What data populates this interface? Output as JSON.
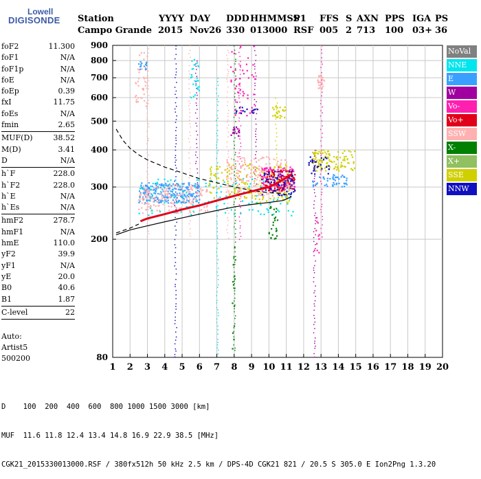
{
  "logo": {
    "line1": "Lowell",
    "line2": "DIGISONDE"
  },
  "header": {
    "labels": [
      "Station",
      "YYYY",
      "DAY",
      "DDD",
      "HHMMSS",
      "P1",
      "FFS",
      "S",
      "AXN",
      "PPS",
      "IGA",
      "PS"
    ],
    "values": [
      "Campo Grande",
      "2015",
      "Nov26",
      "330",
      "013000",
      "RSF",
      "005",
      "2",
      "713",
      "100",
      "03+",
      "36"
    ]
  },
  "params": {
    "group1": [
      {
        "k": "foF2",
        "v": "11.300"
      },
      {
        "k": "foF1",
        "v": "N/A"
      },
      {
        "k": "foF1p",
        "v": "N/A"
      },
      {
        "k": "foE",
        "v": "N/A"
      },
      {
        "k": "foEp",
        "v": "0.39"
      },
      {
        "k": "fxI",
        "v": "11.75"
      },
      {
        "k": "foEs",
        "v": "N/A"
      },
      {
        "k": "fmin",
        "v": "2.65"
      }
    ],
    "group2": [
      {
        "k": "MUF(D)",
        "v": "38.52"
      },
      {
        "k": "M(D)",
        "v": "3.41"
      },
      {
        "k": "D",
        "v": "N/A"
      }
    ],
    "group3": [
      {
        "k": "h`F",
        "v": "228.0"
      },
      {
        "k": "h`F2",
        "v": "228.0"
      },
      {
        "k": "h`E",
        "v": "N/A"
      },
      {
        "k": "h`Es",
        "v": "N/A"
      }
    ],
    "group4": [
      {
        "k": "hmF2",
        "v": "278.7"
      },
      {
        "k": "hmF1",
        "v": "N/A"
      },
      {
        "k": "hmE",
        "v": "110.0"
      },
      {
        "k": "yF2",
        "v": "39.9"
      },
      {
        "k": "yF1",
        "v": "N/A"
      },
      {
        "k": "yE",
        "v": "20.0"
      },
      {
        "k": "B0",
        "v": "40.6"
      },
      {
        "k": "B1",
        "v": "1.87"
      }
    ],
    "group5": [
      {
        "k": "C-level",
        "v": "22"
      }
    ]
  },
  "auto": {
    "line1": "Auto:",
    "line2": "Artist5",
    "line3": "500200"
  },
  "legend": [
    {
      "label": "NoVal",
      "color": "#808080"
    },
    {
      "label": "NNE",
      "color": "#00e5ee"
    },
    {
      "label": "E",
      "color": "#3aa0ff"
    },
    {
      "label": "W",
      "color": "#a000a0"
    },
    {
      "label": "Vo-",
      "color": "#ff20b0"
    },
    {
      "label": "Vo+",
      "color": "#e0001a"
    },
    {
      "label": "SSW",
      "color": "#ffb0b0"
    },
    {
      "label": "X-",
      "color": "#008000"
    },
    {
      "label": "X+",
      "color": "#90c060"
    },
    {
      "label": "SSE",
      "color": "#d0d000"
    },
    {
      "label": "NNW",
      "color": "#1010c0"
    }
  ],
  "footer": {
    "line1": "D    100  200  400  600  800 1000 1500 3000 [km]",
    "line2": "MUF  11.6 11.8 12.4 13.4 14.8 16.9 22.9 38.5 [MHz]",
    "line3": "CGK21_2015330013000.RSF / 380fx512h 50 kHz 2.5 km / DPS-4D CGK21 821 / 20.5 S 305.0 E Ion2Png 1.3.20"
  },
  "chart_data": {
    "type": "scatter",
    "xlim": [
      1,
      20
    ],
    "ylim": [
      80,
      900
    ],
    "y_scale": "log",
    "x_ticks": [
      "1",
      "2",
      "3",
      "4",
      "5",
      "6",
      "7",
      "8",
      "9",
      "10",
      "11",
      "12",
      "13",
      "14",
      "15",
      "16",
      "17",
      "18",
      "19",
      "20"
    ],
    "y_ticks": [
      {
        "v": 80,
        "label": "80"
      },
      {
        "v": 200,
        "label": "200"
      },
      {
        "v": 300,
        "label": "300"
      },
      {
        "v": 400,
        "label": "400"
      },
      {
        "v": 500,
        "label": "500"
      },
      {
        "v": 600,
        "label": "600"
      },
      {
        "v": 700,
        "label": "700"
      },
      {
        "v": 800,
        "label": "800"
      },
      {
        "v": 900,
        "label": "900"
      }
    ],
    "grid": true,
    "curves": [
      {
        "name": "true-height-profile",
        "style": "solid",
        "x": [
          1.2,
          2.0,
          3.0,
          4.0,
          5.0,
          6.0,
          7.0,
          8.0,
          9.0,
          10.0,
          10.8,
          11.3
        ],
        "y": [
          207,
          215,
          222,
          229,
          236,
          243,
          250,
          257,
          262,
          266,
          270,
          278
        ]
      },
      {
        "name": "model-profile",
        "style": "dashed",
        "x": [
          1.2,
          1.6,
          2.0,
          2.5,
          3.0,
          4.0,
          5.0,
          6.0,
          7.0,
          8.0,
          9.0,
          10.0,
          10.8,
          11.3
        ],
        "y": [
          470,
          430,
          405,
          385,
          370,
          350,
          335,
          320,
          310,
          300,
          292,
          287,
          285,
          278
        ]
      },
      {
        "name": "o-trace",
        "style": "solid",
        "color": "#e0001a",
        "x": [
          2.6,
          3.0,
          4.0,
          5.0,
          6.0,
          7.0,
          8.0,
          9.0,
          10.0,
          10.6,
          11.0,
          11.3
        ],
        "y": [
          230,
          235,
          243,
          252,
          260,
          270,
          280,
          290,
          300,
          312,
          322,
          330
        ]
      },
      {
        "name": "lower-dashed",
        "style": "dashed",
        "x": [
          1.2,
          2.0,
          2.5
        ],
        "y": [
          210,
          218,
          225
        ]
      }
    ],
    "clusters": [
      {
        "color": "#3aa0ff",
        "x": [
          2.5,
          6.0
        ],
        "y": [
          265,
          310
        ],
        "n": 260
      },
      {
        "color": "#ffb0b0",
        "x": [
          2.5,
          6.5
        ],
        "y": [
          245,
          305
        ],
        "n": 160
      },
      {
        "color": "#00e5ee",
        "x": [
          2.5,
          11.5
        ],
        "y": [
          240,
          320
        ],
        "n": 120
      },
      {
        "color": "#d0d000",
        "x": [
          6.5,
          11.2
        ],
        "y": [
          265,
          360
        ],
        "n": 180
      },
      {
        "color": "#ffb0b0",
        "x": [
          7.5,
          11.2
        ],
        "y": [
          280,
          380
        ],
        "n": 160
      },
      {
        "color": "#ff20b0",
        "x": [
          9.5,
          11.5
        ],
        "y": [
          290,
          350
        ],
        "n": 140
      },
      {
        "color": "#e0001a",
        "x": [
          9.8,
          11.5
        ],
        "y": [
          290,
          340
        ],
        "n": 90
      },
      {
        "color": "#1010c0",
        "x": [
          9.5,
          11.5
        ],
        "y": [
          280,
          340
        ],
        "n": 70
      },
      {
        "color": "#d0d000",
        "x": [
          12.5,
          15.0
        ],
        "y": [
          340,
          400
        ],
        "n": 110
      },
      {
        "color": "#3aa0ff",
        "x": [
          12.5,
          14.5
        ],
        "y": [
          300,
          330
        ],
        "n": 50
      },
      {
        "color": "#1010c0",
        "x": [
          12.3,
          13.5
        ],
        "y": [
          330,
          380
        ],
        "n": 30
      },
      {
        "color": "#008000",
        "x": [
          10.0,
          10.5
        ],
        "y": [
          200,
          260
        ],
        "n": 25
      },
      {
        "color": "#ffb0b0",
        "x": [
          2.3,
          3.0
        ],
        "y": [
          550,
          850
        ],
        "n": 40
      },
      {
        "color": "#3aa0ff",
        "x": [
          2.5,
          3.0
        ],
        "y": [
          740,
          800
        ],
        "n": 15
      },
      {
        "color": "#ff20b0",
        "x": [
          7.8,
          9.2
        ],
        "y": [
          520,
          900
        ],
        "n": 50
      },
      {
        "color": "#00e5ee",
        "x": [
          5.5,
          6.0
        ],
        "y": [
          600,
          820
        ],
        "n": 25
      },
      {
        "color": "#ffb0b0",
        "x": [
          12.8,
          13.2
        ],
        "y": [
          640,
          720
        ],
        "n": 25
      },
      {
        "color": "#d0d000",
        "x": [
          10.2,
          11.0
        ],
        "y": [
          510,
          560
        ],
        "n": 25
      },
      {
        "color": "#1010c0",
        "x": [
          8.0,
          9.4
        ],
        "y": [
          530,
          560
        ],
        "n": 15
      },
      {
        "color": "#a000a0",
        "x": [
          7.8,
          8.3
        ],
        "y": [
          430,
          480
        ],
        "n": 15
      },
      {
        "color": "#008000",
        "x": [
          7.9,
          8.1
        ],
        "y": [
          80,
          200
        ],
        "n": 15
      },
      {
        "color": "#ff20b0",
        "x": [
          12.6,
          12.9
        ],
        "y": [
          180,
          240
        ],
        "n": 12
      }
    ],
    "streaks": [
      {
        "color": "#1010c0",
        "x": 4.6,
        "y": [
          80,
          900
        ]
      },
      {
        "color": "#ffb0b0",
        "x": 5.4,
        "y": [
          200,
          900
        ]
      },
      {
        "color": "#a000a0",
        "x": 5.8,
        "y": [
          300,
          800
        ]
      },
      {
        "color": "#00e5ee",
        "x": 7.0,
        "y": [
          80,
          700
        ]
      },
      {
        "color": "#ffb0b0",
        "x": 7.6,
        "y": [
          200,
          900
        ]
      },
      {
        "color": "#008000",
        "x": 8.0,
        "y": [
          80,
          900
        ]
      },
      {
        "color": "#ff20b0",
        "x": 8.3,
        "y": [
          200,
          900
        ]
      },
      {
        "color": "#a000a0",
        "x": 9.2,
        "y": [
          300,
          900
        ]
      },
      {
        "color": "#d0d000",
        "x": 10.4,
        "y": [
          300,
          600
        ]
      },
      {
        "color": "#ff20b0",
        "x": 13.0,
        "y": [
          200,
          900
        ]
      },
      {
        "color": "#a000a0",
        "x": 12.6,
        "y": [
          80,
          400
        ]
      },
      {
        "color": "#ffb0b0",
        "x": 3.0,
        "y": [
          200,
          900
        ]
      }
    ]
  }
}
